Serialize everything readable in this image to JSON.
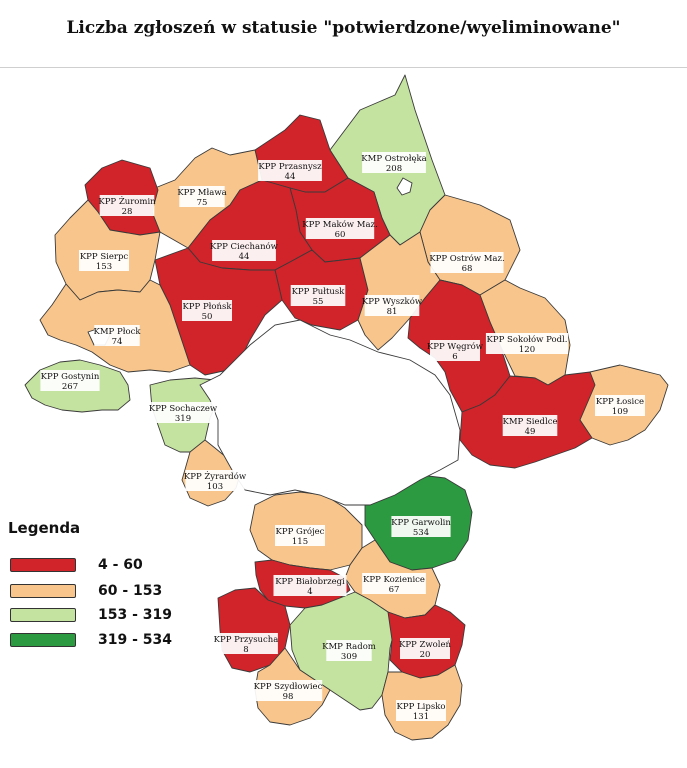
{
  "title": "Liczba zgłoszeń w statusie \"potwierdzone/wyeliminowane\"",
  "colors": {
    "red": "#d0242a",
    "orange": "#f8c68c",
    "light_green": "#c5e3a0",
    "dark_green": "#2c9a40",
    "border": "#3a3a3a"
  },
  "legend": {
    "title": "Legenda",
    "items": [
      {
        "range": "4 - 60",
        "color": "#d0242a"
      },
      {
        "range": "60 - 153",
        "color": "#f8c68c"
      },
      {
        "range": "153 - 319",
        "color": "#c5e3a0"
      },
      {
        "range": "319 - 534",
        "color": "#2c9a40"
      }
    ]
  },
  "regions": [
    {
      "id": "ostroleka",
      "name": "KMP Ostrołęka",
      "value": "208",
      "class": "light_green"
    },
    {
      "id": "przasnysz",
      "name": "KPP Przasnysz",
      "value": "44",
      "class": "red"
    },
    {
      "id": "mlawa",
      "name": "KPP Mława",
      "value": "75",
      "class": "orange"
    },
    {
      "id": "zuromin",
      "name": "KPP Żuromin",
      "value": "28",
      "class": "red"
    },
    {
      "id": "makow",
      "name": "KPP Maków Maz.",
      "value": "60",
      "class": "red"
    },
    {
      "id": "ciechanow",
      "name": "KPP Ciechanów",
      "value": "44",
      "class": "red"
    },
    {
      "id": "ostrow",
      "name": "KPP Ostrów Maz.",
      "value": "68",
      "class": "orange"
    },
    {
      "id": "sierpc",
      "name": "KPP Sierpc",
      "value": "153",
      "class": "orange"
    },
    {
      "id": "pultusk",
      "name": "KPP Pułtusk",
      "value": "55",
      "class": "red"
    },
    {
      "id": "wyszkow",
      "name": "KPP Wyszków",
      "value": "81",
      "class": "orange"
    },
    {
      "id": "plonsk",
      "name": "KPP Płońsk",
      "value": "50",
      "class": "red"
    },
    {
      "id": "plock",
      "name": "KMP Płock",
      "value": "74",
      "class": "orange"
    },
    {
      "id": "sokolow",
      "name": "KPP Sokołów Podl.",
      "value": "120",
      "class": "orange"
    },
    {
      "id": "wegrow",
      "name": "KPP Węgrów",
      "value": "6",
      "class": "red"
    },
    {
      "id": "gostynin",
      "name": "KPP Gostynin",
      "value": "267",
      "class": "light_green"
    },
    {
      "id": "sochaczew",
      "name": "KPP Sochaczew",
      "value": "319",
      "class": "light_green"
    },
    {
      "id": "losice",
      "name": "KPP Łosice",
      "value": "109",
      "class": "orange"
    },
    {
      "id": "siedlce",
      "name": "KMP Siedlce",
      "value": "49",
      "class": "red"
    },
    {
      "id": "zyrardow",
      "name": "KPP Żyrardów",
      "value": "103",
      "class": "orange"
    },
    {
      "id": "garwolin",
      "name": "KPP Garwolin",
      "value": "534",
      "class": "dark_green"
    },
    {
      "id": "grojec",
      "name": "KPP Grójec",
      "value": "115",
      "class": "orange"
    },
    {
      "id": "bialobrzegi",
      "name": "KPP Białobrzegi",
      "value": "4",
      "class": "red"
    },
    {
      "id": "kozienice",
      "name": "KPP Kozienice",
      "value": "67",
      "class": "orange"
    },
    {
      "id": "przysucha",
      "name": "KPP Przysucha",
      "value": "8",
      "class": "red"
    },
    {
      "id": "radom",
      "name": "KMP Radom",
      "value": "309",
      "class": "light_green"
    },
    {
      "id": "zwolen",
      "name": "KPP Zwoleń",
      "value": "20",
      "class": "red"
    },
    {
      "id": "szydlowiec",
      "name": "KPP Szydłowiec",
      "value": "98",
      "class": "orange"
    },
    {
      "id": "lipsko",
      "name": "KPP Lipsko",
      "value": "131",
      "class": "orange"
    }
  ]
}
